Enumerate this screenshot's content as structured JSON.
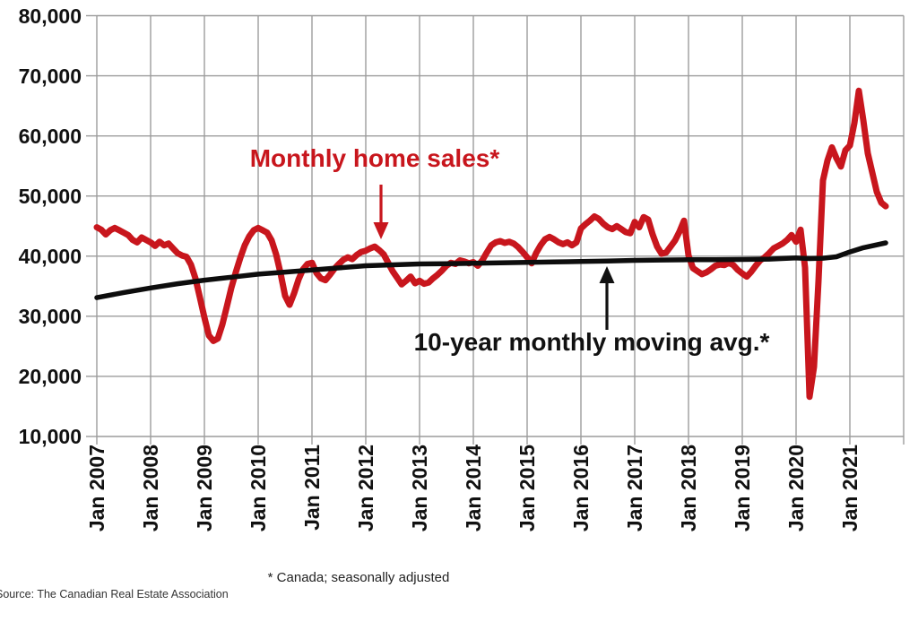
{
  "chart": {
    "annotations": {
      "red_label": "Monthly home sales*",
      "black_label": "10-year monthly moving avg.*"
    },
    "footnote": "* Canada; seasonally adjusted",
    "source": "Source: The Canadian Real Estate Association",
    "colors": {
      "sales_line": "#c8161d",
      "avg_line": "#0d0d0d",
      "grid": "#9c9c9c",
      "label_text": "#111111"
    }
  },
  "chart_data": {
    "type": "line",
    "title": "",
    "xlabel": "",
    "ylabel": "",
    "ylim": [
      10000,
      80000
    ],
    "ytick_labels": [
      "80,000",
      "70,000",
      "60,000",
      "50,000",
      "40,000",
      "30,000",
      "20,000",
      "10,000"
    ],
    "xtick_labels": [
      "Jan 2007",
      "Jan 2008",
      "Jan 2009",
      "Jan 2010",
      "Jan 2011",
      "Jan 2012",
      "Jan 2013",
      "Jan 2014",
      "Jan 2015",
      "Jan 2016",
      "Jan 2017",
      "Jan 2018",
      "Jan 2019",
      "Jan 2020",
      "Jan 2021"
    ],
    "x_range_years": [
      2007,
      2022
    ],
    "grid": true,
    "legend_position": "inline-annotations",
    "series": [
      {
        "name": "Monthly home sales*",
        "color": "#c8161d",
        "frequency": "monthly",
        "start": "Jan 2007",
        "end": "Sep 2021",
        "values": [
          44800,
          44400,
          43600,
          44300,
          44700,
          44300,
          43900,
          43500,
          42700,
          42300,
          43100,
          42700,
          42300,
          41700,
          42400,
          41800,
          42100,
          41300,
          40500,
          40100,
          39900,
          38600,
          36300,
          33100,
          29800,
          26800,
          25900,
          26300,
          28600,
          31600,
          34700,
          37300,
          39700,
          41800,
          43300,
          44300,
          44700,
          44300,
          43900,
          42600,
          40300,
          37100,
          33400,
          31900,
          33800,
          36100,
          37800,
          38700,
          38900,
          37200,
          36300,
          36000,
          36900,
          37900,
          38700,
          39400,
          39800,
          39500,
          40200,
          40700,
          40900,
          41300,
          41600,
          41000,
          40300,
          38900,
          37500,
          36400,
          35300,
          35900,
          36600,
          35500,
          35900,
          35400,
          35600,
          36300,
          36900,
          37600,
          38400,
          38900,
          38700,
          39300,
          39100,
          38800,
          39000,
          38400,
          39300,
          40600,
          41800,
          42300,
          42500,
          42200,
          42400,
          42100,
          41500,
          40700,
          39800,
          38800,
          40500,
          41800,
          42800,
          43200,
          42800,
          42300,
          42000,
          42300,
          41800,
          42300,
          44600,
          45300,
          45900,
          46600,
          46200,
          45400,
          44800,
          44500,
          45000,
          44500,
          44000,
          43800,
          45700,
          44800,
          46500,
          46100,
          43600,
          41600,
          40400,
          40600,
          41600,
          42600,
          44100,
          45900,
          40100,
          38000,
          37500,
          37000,
          37300,
          37800,
          38400,
          38600,
          38500,
          38900,
          38500,
          37700,
          37100,
          36600,
          37400,
          38400,
          39300,
          39800,
          40500,
          41300,
          41700,
          42100,
          42700,
          43500,
          42400,
          44400,
          38100,
          16600,
          21600,
          35900,
          52600,
          55900,
          58100,
          56300,
          54900,
          57600,
          58400,
          62100,
          67500,
          62600,
          57100,
          53900,
          50700,
          48900,
          48300
        ]
      },
      {
        "name": "10-year monthly moving avg.*",
        "color": "#0d0d0d",
        "frequency": "anchor-points",
        "x_years": [
          2007.0,
          2007.5,
          2008.0,
          2008.5,
          2009.0,
          2009.5,
          2010.0,
          2010.5,
          2011.0,
          2011.5,
          2012.0,
          2012.5,
          2013.0,
          2013.5,
          2014.0,
          2014.5,
          2015.0,
          2015.5,
          2016.0,
          2016.5,
          2017.0,
          2017.5,
          2018.0,
          2018.5,
          2019.0,
          2019.5,
          2020.0,
          2020.25,
          2020.5,
          2020.75,
          2021.0,
          2021.25,
          2021.667
        ],
        "values": [
          33100,
          33950,
          34700,
          35400,
          36000,
          36500,
          37000,
          37350,
          37700,
          38050,
          38400,
          38550,
          38700,
          38750,
          38800,
          38900,
          38950,
          39050,
          39100,
          39200,
          39300,
          39350,
          39400,
          39420,
          39450,
          39500,
          39700,
          39600,
          39650,
          39900,
          40700,
          41400,
          42200
        ]
      }
    ]
  }
}
